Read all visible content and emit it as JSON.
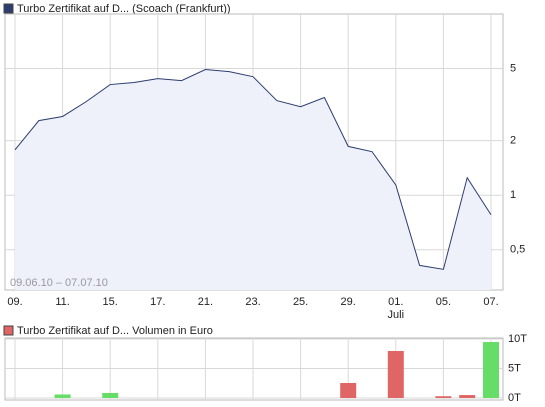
{
  "chart_data": [
    {
      "type": "line",
      "title": "Turbo Zertifikat auf D... (Scoach (Frankfurt))",
      "legend_color": "#2b3d6e",
      "annotation": "09.06.10 – 07.07.10",
      "sublabel": "Juli",
      "categories": [
        "09.",
        null,
        "11.",
        null,
        "15.",
        null,
        "17.",
        null,
        "21.",
        null,
        "23.",
        null,
        "25.",
        null,
        "29.",
        null,
        "01.",
        null,
        "05.",
        null,
        "07."
      ],
      "series": [
        {
          "name": "Turbo Zertifikat auf D...",
          "color": "#2b3d6e",
          "values": [
            1.78,
            2.58,
            2.72,
            3.29,
            4.08,
            4.19,
            4.4,
            4.29,
            4.94,
            4.81,
            4.51,
            3.33,
            3.08,
            3.46,
            1.86,
            1.74,
            1.14,
            0.41,
            0.39,
            1.25,
            0.78
          ]
        }
      ],
      "ylim": [
        0.3,
        10
      ],
      "log_scale": true,
      "yticks": [
        {
          "value": 0.5,
          "label": "0,5"
        },
        1,
        2,
        5
      ],
      "grid": true
    },
    {
      "type": "bar",
      "title": "Turbo Zertifikat auf D... Volumen in Euro",
      "legend_color": "#e06666",
      "values": [
        0,
        0,
        600,
        0,
        850,
        0,
        0,
        0,
        0,
        0,
        0,
        0,
        0,
        0,
        2540,
        0,
        7970,
        0,
        300,
        500,
        9490
      ],
      "colors": [
        "#66dd66",
        "#66dd66",
        "#66dd66",
        "#66dd66",
        "#66dd66",
        "#66dd66",
        "#66dd66",
        "#66dd66",
        "#66dd66",
        "#66dd66",
        "#66dd66",
        "#66dd66",
        "#66dd66",
        "#66dd66",
        "#e06666",
        "#e06666",
        "#e06666",
        "#e06666",
        "#e06666",
        "#e06666",
        "#66dd66"
      ],
      "ylim": [
        0,
        10000
      ],
      "yticks": [
        {
          "value": 0,
          "label": "0T"
        },
        {
          "value": 5000,
          "label": "5T"
        },
        {
          "value": 10000,
          "label": "10T"
        }
      ],
      "grid": true
    }
  ]
}
